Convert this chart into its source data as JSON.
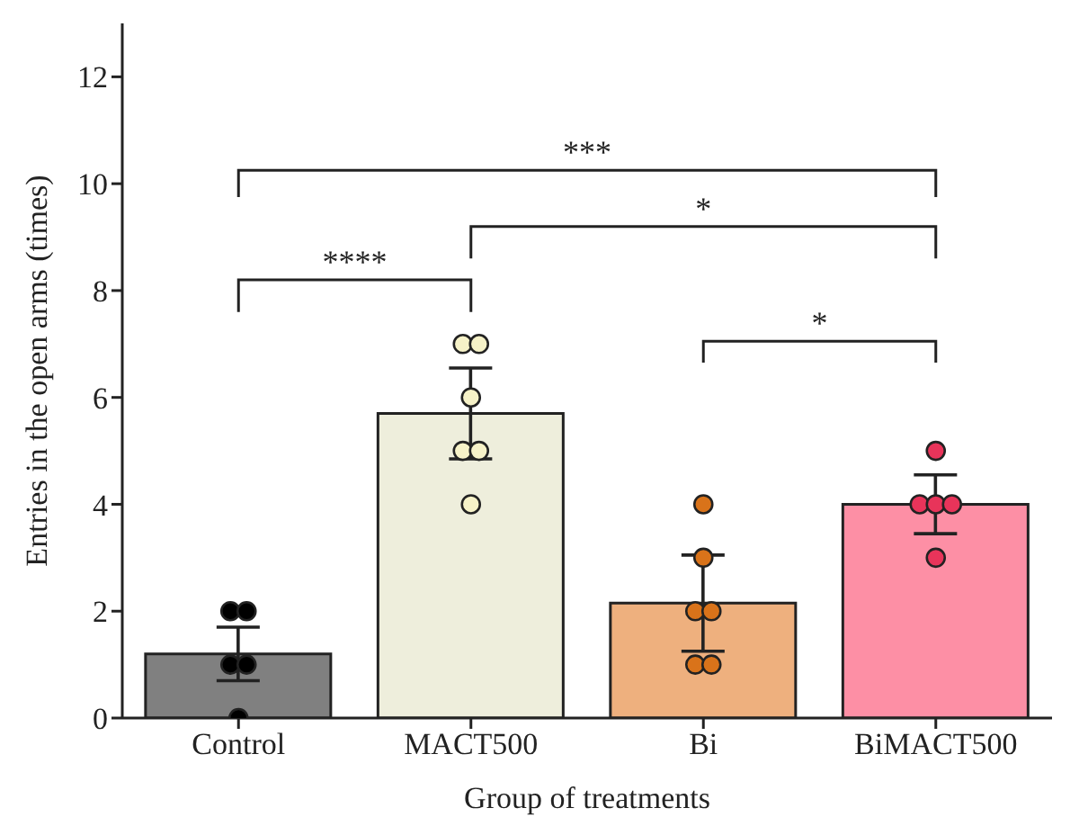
{
  "chart_data": {
    "type": "bar",
    "xlabel": "Group of treatments",
    "ylabel": "Entries in the open arms (times)",
    "categories": [
      "Control",
      "MACT500",
      "Bi",
      "BiMACT500"
    ],
    "ylim": [
      0,
      13
    ],
    "yticks": [
      0,
      2,
      4,
      6,
      8,
      10,
      12
    ],
    "grid": false,
    "legend": false,
    "series": [
      {
        "values": [
          1.2,
          5.7,
          2.15,
          4.0
        ],
        "errors": [
          0.5,
          0.85,
          0.9,
          0.55
        ],
        "colors": [
          "#808080",
          "#eeeedc",
          "#eeb07e",
          "#fd8fa5"
        ]
      },
      {
        "type": "scatter",
        "marker": "circle",
        "x": [
          "Control",
          "Control",
          "Control",
          "Control",
          "Control",
          "MACT500",
          "MACT500",
          "MACT500",
          "MACT500",
          "MACT500",
          "MACT500",
          "Bi",
          "Bi",
          "Bi",
          "Bi",
          "Bi",
          "Bi",
          "BiMACT500",
          "BiMACT500",
          "BiMACT500",
          "BiMACT500",
          "BiMACT500"
        ],
        "values": [
          2,
          2,
          1,
          1,
          0,
          7,
          7,
          6,
          5,
          5,
          4,
          4,
          3,
          2,
          2,
          1,
          1,
          5,
          4,
          4,
          4,
          3
        ],
        "colors": [
          "#000000",
          "#000000",
          "#000000",
          "#000000",
          "#000000",
          "#f6f2c8",
          "#f6f2c8",
          "#f6f2c8",
          "#f6f2c8",
          "#f6f2c8",
          "#f6f2c8",
          "#d9731a",
          "#d9731a",
          "#d9731a",
          "#d9731a",
          "#d9731a",
          "#d9731a",
          "#e8345a",
          "#e8345a",
          "#e8345a",
          "#e8345a",
          "#e8345a"
        ]
      }
    ],
    "annotations": [
      "***",
      "*",
      "****",
      "*"
    ]
  }
}
